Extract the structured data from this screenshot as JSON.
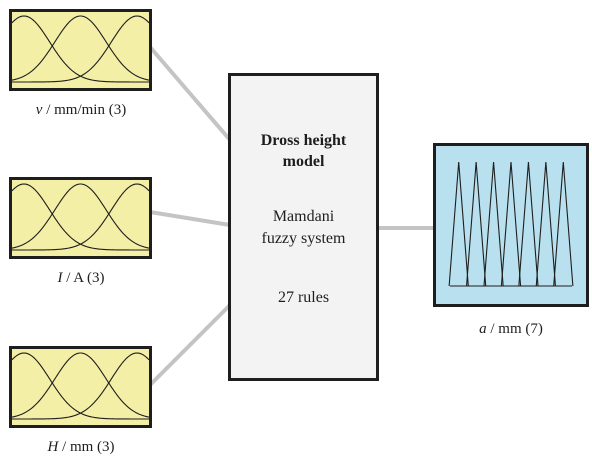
{
  "colors": {
    "input_fill": "#f4efa6",
    "output_fill": "#b9e0ee",
    "model_fill": "#f3f3f3",
    "connector": "#c4c4c4",
    "border": "#1e1e1e"
  },
  "inputs": [
    {
      "symbol": "v",
      "unit_text": " / mm/min (3)",
      "mf_count": 3,
      "mf_shape": "gaussian"
    },
    {
      "symbol": "I",
      "unit_text": " / A (3)",
      "mf_count": 3,
      "mf_shape": "gaussian"
    },
    {
      "symbol": "H",
      "unit_text": " / mm (3)",
      "mf_count": 3,
      "mf_shape": "gaussian"
    }
  ],
  "model": {
    "title_line1": "Dross height",
    "title_line2": "model",
    "type_line1": "Mamdani",
    "type_line2": "fuzzy system",
    "rules": "27 rules"
  },
  "output": {
    "symbol": "a",
    "unit_text": " / mm (7)",
    "mf_count": 7,
    "mf_shape": "triangular"
  }
}
